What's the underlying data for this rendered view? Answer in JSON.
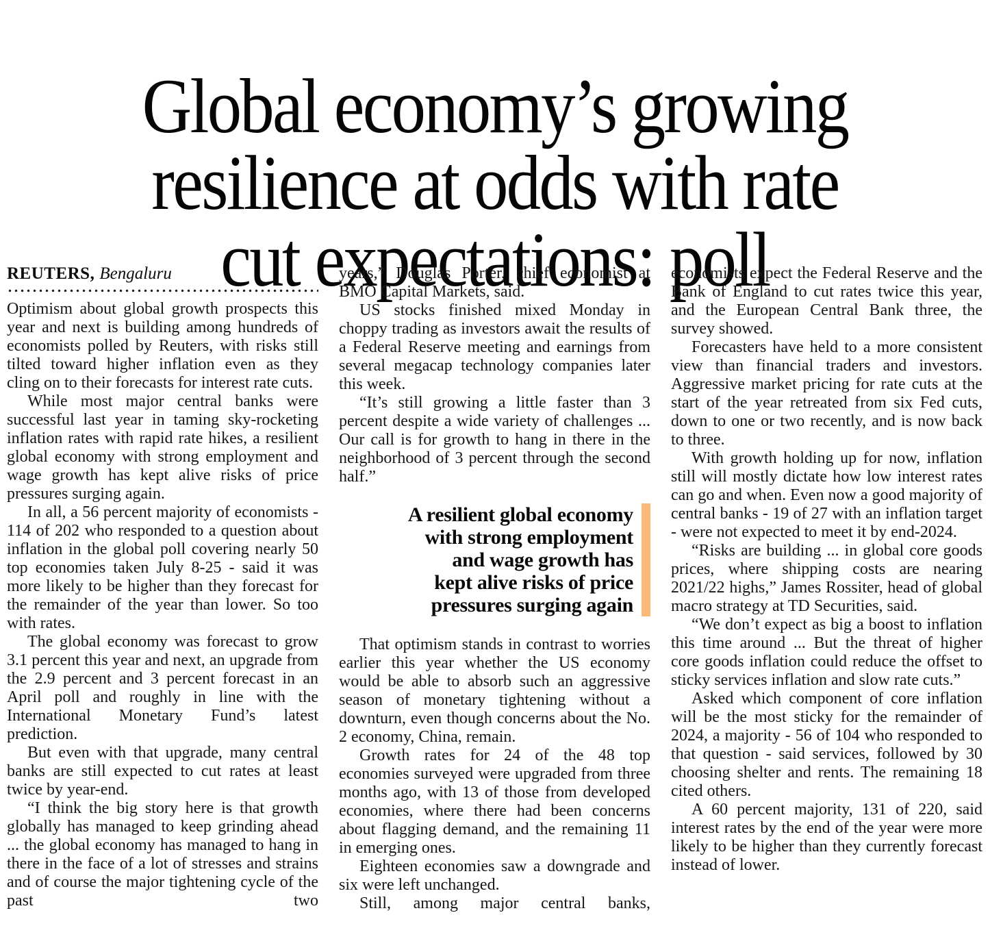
{
  "page": {
    "background": "#ffffff",
    "text_color": "#161616"
  },
  "article": {
    "headline": "Global economy’s growing resilience at odds with rate cut expectations: poll",
    "headline_lines": [
      "Global economy’s growing",
      "resilience at odds with rate",
      "cut expectations: poll"
    ],
    "byline": {
      "agency": "REUTERS,",
      "location": "Bengaluru"
    },
    "col1": [
      "Optimism about global growth prospects this year and next is building among hundreds of economists polled by Reuters, with risks still tilted toward higher inflation even as they cling on to their forecasts for interest rate cuts.",
      "While most major central banks were successful last year in taming sky-rocketing inflation rates with rapid rate hikes, a resilient global economy with strong employment and wage growth has kept alive risks of price pressures surging again.",
      "In all, a 56 percent majority of economists - 114 of 202 who responded to a question about inflation in the global poll covering nearly 50 top economies taken July 8-25 - said it was more likely to be higher than they forecast for the remainder of the year than lower. So too with rates.",
      "The global economy was forecast to grow 3.1 percent this year and next, an upgrade from the 2.9 percent and 3 percent forecast in an April poll and roughly in line with the International Monetary Fund’s latest prediction.",
      "But even with that upgrade, many central banks are still expected to cut rates at least twice by year-end.",
      "“I think the big story here is that growth globally has managed to keep grinding ahead ... the global economy has managed to hang in there in the face of a lot of stresses and strains and of course the major tightening cycle of the past two"
    ],
    "col2_top": [
      "years,” Douglas Porter, chief economist at BMO Capital Markets, said.",
      "US stocks finished mixed Monday in choppy trading as investors await the results of a Federal Reserve meeting and earnings from several megacap technology companies later this week.",
      "“It’s still growing a little faster than 3 percent despite a wide variety of challenges ... Our call is for growth to hang in there in the neighborhood of 3 percent through the second half.”"
    ],
    "pull_quote": {
      "text": "A resilient global economy with strong employment and wage growth has kept alive risks of price pressures surging again",
      "lines": [
        "A resilient global economy",
        "with strong employment",
        "and wage growth has",
        "kept alive risks of price",
        "pressures surging again"
      ],
      "accent_color": "#fbb878"
    },
    "col2_bottom": [
      "That optimism stands in contrast to worries earlier this year whether the US economy would be able to absorb such an aggressive season of monetary tightening without a downturn, even though concerns about the No. 2 economy, China, remain.",
      "Growth rates for 24 of the 48 top economies surveyed were upgraded from three months ago, with 13 of those from developed economies, where there had been concerns about flagging demand, and the remaining 11 in emerging ones.",
      "Eighteen economies saw a downgrade and six were left unchanged.",
      "Still, among major central banks,"
    ],
    "col3": [
      "economists expect the Federal Reserve and the Bank of England to cut rates twice this year, and the European Central Bank three, the survey showed.",
      "Forecasters have held to a more consistent view than financial traders and investors. Aggressive market pricing for rate cuts at the start of the year retreated from six Fed cuts, down to one or two recently, and is now back to three.",
      "With growth holding up for now, inflation still will mostly dictate how low interest rates can go and when. Even now a good majority of central banks - 19 of 27 with an inflation target - were not expected to meet it by end-2024.",
      "“Risks are building ... in global core goods prices, where shipping costs are nearing 2021/22 highs,” James Rossiter, head of global macro strategy at TD Securities, said.",
      "“We don’t expect as big a boost to inflation this time around ... But the threat of higher core goods inflation could reduce the offset to sticky services inflation and slow rate cuts.”",
      "Asked which component of core inflation will be the most sticky for the remainder of 2024, a majority - 56 of 104 who responded to that question - said services, followed by 30 choosing shelter and rents. The remaining 18 cited others.",
      "A 60 percent majority, 131 of 220, said interest rates by the end of the year were more likely to be higher than they currently forecast instead of lower."
    ]
  }
}
